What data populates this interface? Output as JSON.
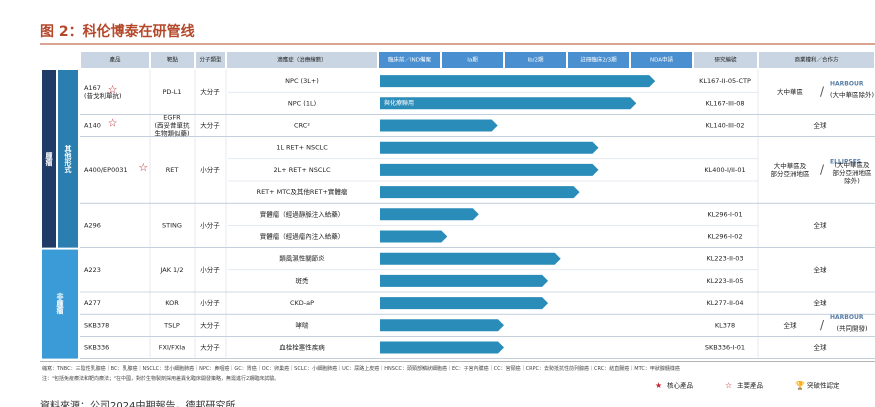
{
  "title": "图 2：科伦博泰在研管线",
  "headers": [
    "產品",
    "靶點",
    "分子類型",
    "適應症（治療線數）",
    "臨床前／IND備案",
    "Ia期",
    "Ib/2期",
    "註冊臨床2/3期",
    "NDA申請",
    "研究編號",
    "商業權利／合作方"
  ],
  "side_labels": [
    "腫瘤",
    "其他形式",
    "非腫瘤"
  ],
  "products": [
    {
      "name": "A167",
      "note": "(昔戈利單抗)",
      "star": "☆",
      "target": "PD-L1",
      "type": "大分子",
      "rights": "大中華區",
      "partner": "HARBOUR",
      "partner_note": "(大中華區除外)",
      "indications": [
        {
          "name": "NPC (3L+)",
          "bar": 4.4
        },
        {
          "name": "NPC (1L)",
          "bar": 4.1,
          "bar_label": "與化療聯用"
        }
      ],
      "studies": [
        "KL167-II-05-CTP",
        "KL167-III-08"
      ]
    },
    {
      "name": "A140",
      "star": "☆",
      "target": "EGFR\n(西妥昔單抗\n生物類似藥)",
      "type": "大分子",
      "rights": "全球",
      "indications": [
        {
          "name": "CRC²",
          "bar": 1.9
        }
      ],
      "studies": [
        "KL140-III-02"
      ]
    },
    {
      "name": "A400/EP0031",
      "star": "☆",
      "target": "RET",
      "type": "小分子",
      "rights": "大中華區及\n部分亞洲地區",
      "partner": "ELLIPSES",
      "partner_note": "(大中華區及\n部分亞洲地區\n除外)",
      "indications": [
        {
          "name": "1L RET+ NSCLC",
          "bar": 3.5
        },
        {
          "name": "2L+ RET+ NSCLC",
          "bar": 3.5
        },
        {
          "name": "RET+ MTC及其他RET+實體瘤",
          "bar": 3.2
        }
      ],
      "studies": [
        "KL400-I/II-01"
      ]
    },
    {
      "name": "A296",
      "target": "STING",
      "type": "小分子",
      "rights": "全球",
      "indications": [
        {
          "name": "實體瘤（經過靜脈注入給藥）",
          "bar": 1.6
        },
        {
          "name": "實體瘤（經過瘤內注入給藥）",
          "bar": 1.1
        }
      ],
      "studies": [
        "KL296-I-01",
        "KL296-I-02"
      ]
    },
    {
      "name": "A223",
      "target": "JAK 1/2",
      "type": "小分子",
      "rights": "全球",
      "indications": [
        {
          "name": "類風濕性關節炎",
          "bar": 2.9
        },
        {
          "name": "斑禿",
          "bar": 2.7
        }
      ],
      "studies": [
        "KL223-II-03",
        "KL223-II-05"
      ]
    },
    {
      "name": "A277",
      "target": "KOR",
      "type": "小分子",
      "rights": "全球",
      "indications": [
        {
          "name": "CKD-aP",
          "bar": 2.7
        }
      ],
      "studies": [
        "KL277-II-04"
      ]
    },
    {
      "name": "SKB378",
      "target": "TSLP",
      "type": "大分子",
      "rights": "全球",
      "partner": "HARBOUR",
      "partner_note": "(共同開發)",
      "indications": [
        {
          "name": "哮喘",
          "bar": 2.0
        }
      ],
      "studies": [
        "KL378"
      ]
    },
    {
      "name": "SKB336",
      "target": "FXI/FXIa",
      "type": "大分子",
      "rights": "全球",
      "indications": [
        {
          "name": "血栓栓塞性疾病",
          "bar": 2.0
        }
      ],
      "studies": [
        "SKB336-I-01"
      ]
    }
  ],
  "footnotes": [
    "縮寫：TNBC：三陰性乳腺癌｜BC：乳腺癌｜NSCLC：非小細胞肺癌｜NPC：鼻咽癌｜GC：胃癌｜OC：卵巢癌｜SCLC：小細胞肺癌｜UC：尿路上皮癌｜HNSCC：頭頸部鱗狀細胞癌｜EC：子宮內膜癌｜CC：宮頸癌｜CRPC：去勢抵抗性前列腺癌｜CRC：結直腸癌｜MTC：甲狀腺髓樣癌",
    "注：¹包括免疫療法和靶向療法；²在中國，對於生物製劑採用差異化臨床開發策略，無需進行2期臨床試驗。"
  ],
  "legend": [
    {
      "symbol": "★",
      "label": "核心產品"
    },
    {
      "symbol": "☆",
      "label": "主要產品"
    },
    {
      "symbol": "🏆",
      "label": "突破性認定"
    }
  ],
  "source": "資料來源：公司2024中期報告，德邦研究所"
}
